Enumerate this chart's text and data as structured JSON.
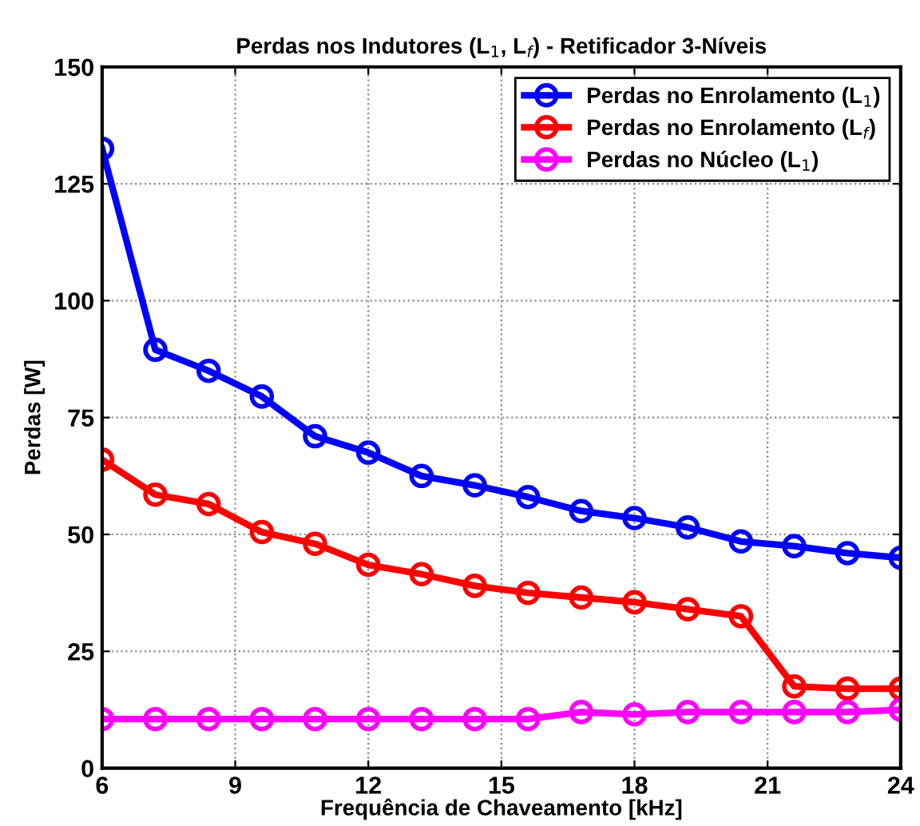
{
  "chart_data": {
    "type": "line",
    "title": "Perdas nos Indutores (L$_{1}$, L$_{f}$) - Retificador 3-Níveis",
    "xlabel": "Frequência de Chaveamento [kHz]",
    "ylabel": "Perdas [W]",
    "x": [
      6,
      7.2,
      8.4,
      9.6,
      10.8,
      12,
      13.2,
      14.4,
      15.6,
      16.8,
      18,
      19.2,
      20.4,
      21.6,
      22.8,
      24
    ],
    "series": [
      {
        "name": "Perdas no Enrolamento (L$_{1}$)",
        "color": "#0000ff",
        "values": [
          132.5,
          89.5,
          85,
          79.5,
          71,
          67.5,
          62.5,
          60.5,
          58,
          55,
          53.5,
          51.5,
          48.5,
          47.5,
          46,
          45
        ]
      },
      {
        "name": "Perdas no Enrolamento (L$_{f}$)",
        "color": "#ff0000",
        "values": [
          66,
          58.5,
          56.5,
          50.5,
          48,
          43.5,
          41.5,
          39,
          37.5,
          36.5,
          35.5,
          34,
          32.5,
          17.5,
          17,
          17
        ]
      },
      {
        "name": "Perdas no Núcleo (L$_{1}$)",
        "color": "#ff00ff",
        "values": [
          10.5,
          10.5,
          10.5,
          10.5,
          10.5,
          10.5,
          10.5,
          10.5,
          10.5,
          12,
          11.5,
          12,
          12,
          12,
          12,
          12.5
        ]
      }
    ],
    "xlim": [
      6,
      24
    ],
    "xticks": [
      6,
      9,
      12,
      15,
      18,
      21,
      24
    ],
    "ylim": [
      0,
      150
    ],
    "yticks": [
      0,
      25,
      50,
      75,
      100,
      125,
      150
    ],
    "grid": true,
    "legend": "top right",
    "marker": "circle",
    "line_style": "solid"
  }
}
